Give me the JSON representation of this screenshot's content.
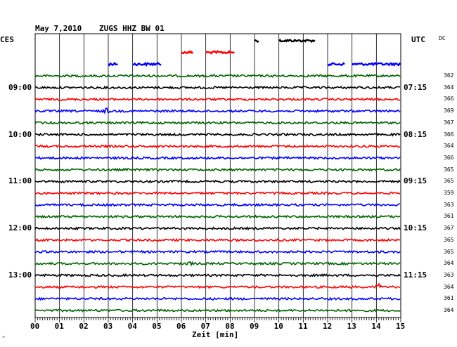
{
  "header": {
    "date": "May 7,2010",
    "station": "ZUGS HHZ BW 01",
    "left_zone": "CES",
    "right_zone": "UTC",
    "dc_label": "DC"
  },
  "colors": {
    "green": "#006400",
    "black": "#000000",
    "red": "#ff0000",
    "blue": "#0000ff",
    "grid": "#000000"
  },
  "chart_data": {
    "type": "line",
    "title": "May 7,2010   ZUGS HHZ BW 01",
    "xlabel": "Zeit [min]",
    "ylabel": "",
    "xlim": [
      0,
      15
    ],
    "x_ticks": [
      "00",
      "01",
      "02",
      "03",
      "04",
      "05",
      "06",
      "07",
      "08",
      "09",
      "10",
      "11",
      "12",
      "13",
      "14",
      "15"
    ],
    "rows_per_hour": 4,
    "color_cycle": [
      "green",
      "black",
      "red",
      "blue"
    ],
    "left_hour_labels": [
      {
        "row": 1,
        "label": "09:00"
      },
      {
        "row": 5,
        "label": "10:00"
      },
      {
        "row": 9,
        "label": "11:00"
      },
      {
        "row": 13,
        "label": "12:00"
      },
      {
        "row": 17,
        "label": "13:00"
      }
    ],
    "right_hour_labels": [
      {
        "row": 1,
        "label": "07:15"
      },
      {
        "row": 5,
        "label": "08:15"
      },
      {
        "row": 9,
        "label": "09:15"
      },
      {
        "row": 13,
        "label": "10:15"
      },
      {
        "row": 17,
        "label": "11:15"
      }
    ],
    "partial_rows": [
      {
        "row": -3,
        "color": "black",
        "segments": [
          [
            9.0,
            9.2
          ],
          [
            10.0,
            11.5
          ]
        ]
      },
      {
        "row": -2,
        "color": "red",
        "segments": [
          [
            6.0,
            6.5
          ],
          [
            7.0,
            8.2
          ]
        ]
      },
      {
        "row": -1,
        "color": "blue",
        "segments": [
          [
            3.0,
            3.4
          ],
          [
            4.0,
            5.2
          ],
          [
            12.0,
            12.7
          ],
          [
            13.0,
            15.0
          ]
        ]
      }
    ],
    "traces": [
      {
        "row": 0,
        "color": "green",
        "dc": "362"
      },
      {
        "row": 1,
        "color": "black",
        "dc": "364"
      },
      {
        "row": 2,
        "color": "red",
        "dc": "366"
      },
      {
        "row": 3,
        "color": "blue",
        "dc": "369"
      },
      {
        "row": 4,
        "color": "green",
        "dc": "367"
      },
      {
        "row": 5,
        "color": "black",
        "dc": "366"
      },
      {
        "row": 6,
        "color": "red",
        "dc": "364"
      },
      {
        "row": 7,
        "color": "blue",
        "dc": "366"
      },
      {
        "row": 8,
        "color": "green",
        "dc": "365"
      },
      {
        "row": 9,
        "color": "black",
        "dc": "365"
      },
      {
        "row": 10,
        "color": "red",
        "dc": "359"
      },
      {
        "row": 11,
        "color": "blue",
        "dc": "363"
      },
      {
        "row": 12,
        "color": "green",
        "dc": "361"
      },
      {
        "row": 13,
        "color": "black",
        "dc": "367"
      },
      {
        "row": 14,
        "color": "red",
        "dc": "365"
      },
      {
        "row": 15,
        "color": "blue",
        "dc": "365"
      },
      {
        "row": 16,
        "color": "green",
        "dc": "364"
      },
      {
        "row": 17,
        "color": "black",
        "dc": "363"
      },
      {
        "row": 18,
        "color": "red",
        "dc": "364"
      },
      {
        "row": 19,
        "color": "blue",
        "dc": "361"
      },
      {
        "row": 20,
        "color": "green",
        "dc": "364"
      }
    ],
    "events": [
      {
        "row": 3,
        "minute": 2.9,
        "amp": 2.5
      },
      {
        "row": 16,
        "minute": 6.3,
        "amp": 2.0
      },
      {
        "row": 18,
        "minute": 14.1,
        "amp": 2.5
      }
    ]
  },
  "footer": {
    "corner_mark": "^"
  }
}
